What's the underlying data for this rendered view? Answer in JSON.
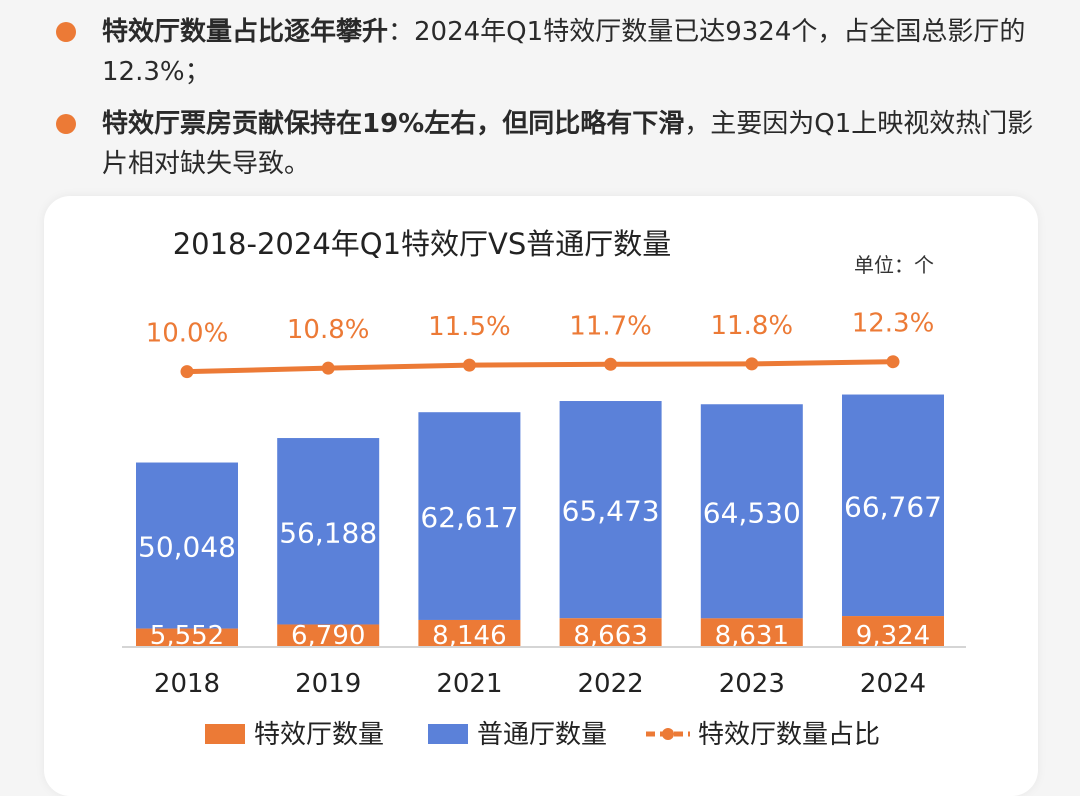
{
  "bullets": [
    {
      "head": "特效厅数量占比逐年攀升",
      "body": "：2024年Q1特效厅数量已达9324个，占全国总影厅的12.3%；"
    },
    {
      "head": "特效厅票房贡献保持在19%左右，但同比略有下滑",
      "body": "，主要因为Q1上映视效热门影片相对缺失导致。"
    }
  ],
  "colors": {
    "orange": "#ec7a36",
    "blue": "#5b81d9",
    "bullet": "#ec7a36"
  },
  "chart_data": {
    "type": "bar",
    "stacked": true,
    "title": "2018-2024年Q1特效厅VS普通厅数量",
    "unit_label": "单位：个",
    "categories": [
      "2018",
      "2019",
      "2021",
      "2022",
      "2023",
      "2024"
    ],
    "series": [
      {
        "name": "特效厅数量",
        "values": [
          5552,
          6790,
          8146,
          8663,
          8631,
          9324
        ],
        "labels": [
          "5,552",
          "6,790",
          "8,146",
          "8,663",
          "8,631",
          "9,324"
        ],
        "color": "#ec7a36"
      },
      {
        "name": "普通厅数量",
        "values": [
          50048,
          56188,
          62617,
          65473,
          64530,
          66767
        ],
        "labels": [
          "50,048",
          "56,188",
          "62,617",
          "65,473",
          "64,530",
          "66,767"
        ],
        "color": "#5b81d9"
      }
    ],
    "line": {
      "name": "特效厅数量占比",
      "values": [
        10.0,
        10.8,
        11.5,
        11.7,
        11.8,
        12.3
      ],
      "labels": [
        "10.0%",
        "10.8%",
        "11.5%",
        "11.7%",
        "11.8%",
        "12.3%"
      ],
      "color": "#ec7a36"
    },
    "legend": "bottom"
  }
}
